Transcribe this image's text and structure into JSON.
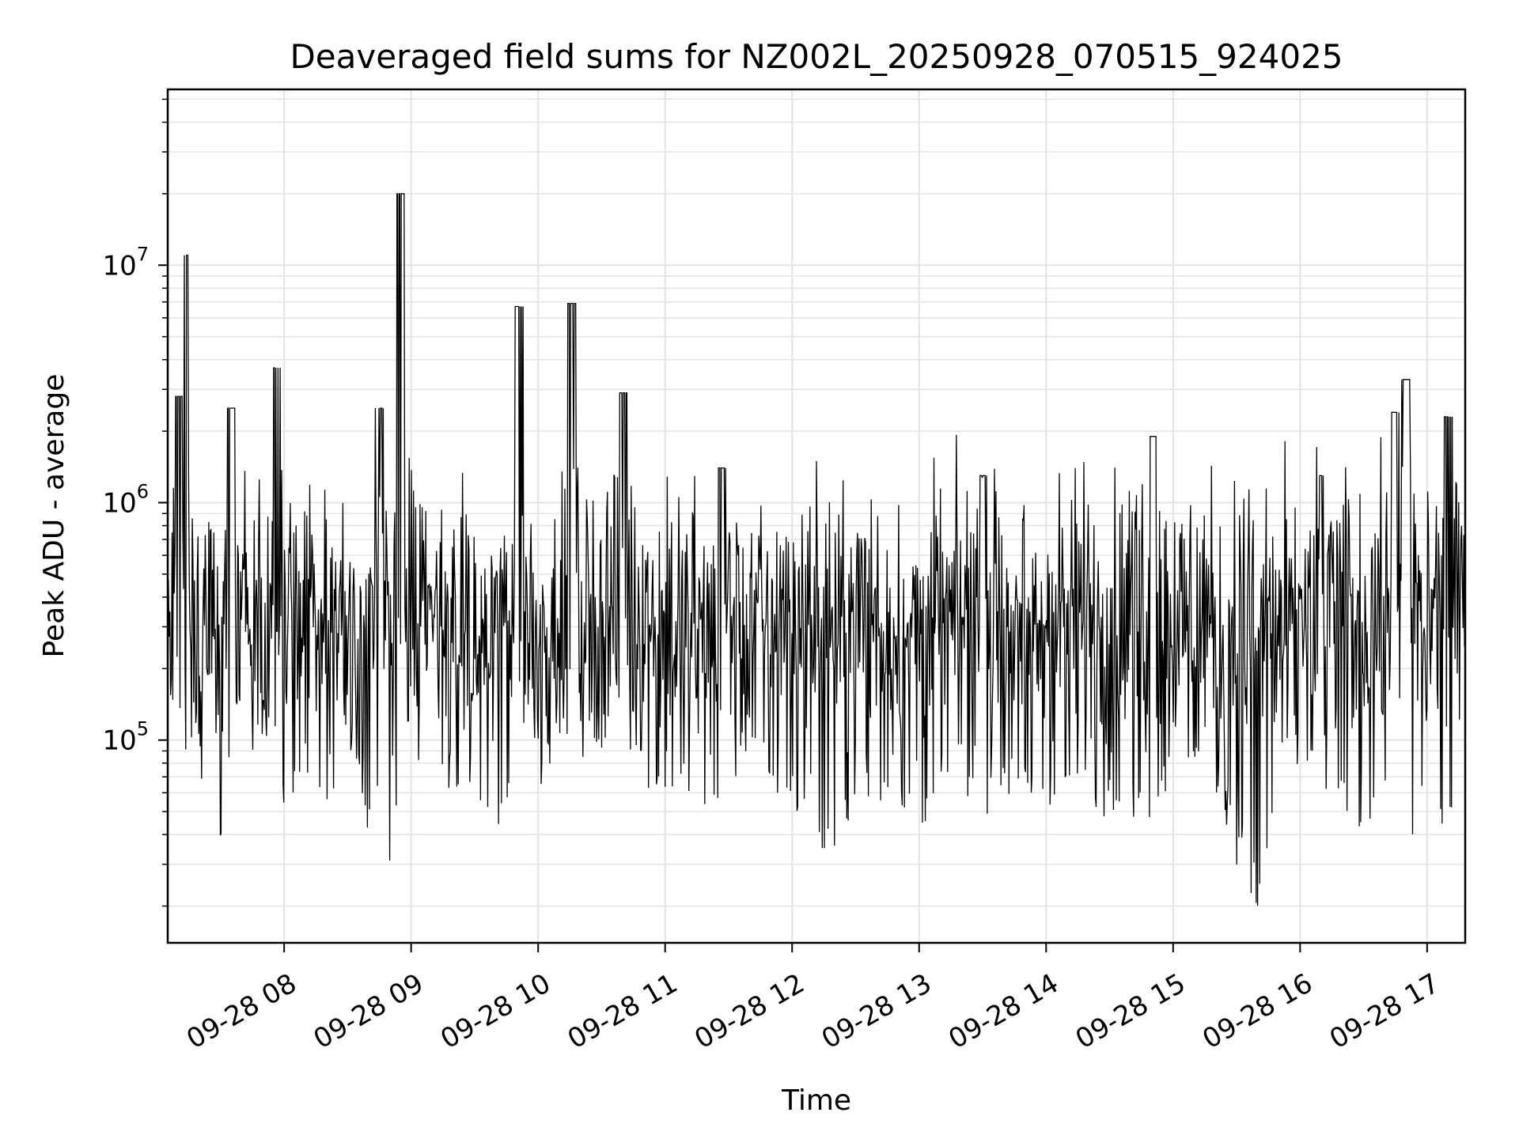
{
  "chart_data": {
    "type": "line",
    "title": "Deaveraged field sums for NZ002L_20250928_070515_924025",
    "xlabel": "Time",
    "ylabel": "Peak ADU - average",
    "xlim": [
      "09-28 07:05",
      "09-28 17:18"
    ],
    "ylim": [
      14000,
      55000000
    ],
    "y_scale": "log",
    "grid": true,
    "line_color": "#000000",
    "x_ticks": [
      "09-28 08",
      "09-28 09",
      "09-28 10",
      "09-28 11",
      "09-28 12",
      "09-28 13",
      "09-28 14",
      "09-28 15",
      "09-28 16",
      "09-28 17"
    ],
    "y_ticks": [
      {
        "value": 100000,
        "base": "10",
        "exp": "5"
      },
      {
        "value": 1000000,
        "base": "10",
        "exp": "6"
      },
      {
        "value": 10000000,
        "base": "10",
        "exp": "7"
      }
    ],
    "series": [
      {
        "x": [
          "09-28 07:05",
          "09-28 07:10",
          "09-28 07:13",
          "09-28 07:17",
          "09-28 07:20",
          "09-28 07:30",
          "09-28 07:35",
          "09-28 07:45",
          "09-28 07:50",
          "09-28 07:57",
          "09-28 08:10",
          "09-28 08:25",
          "09-28 08:35",
          "09-28 08:40",
          "09-28 08:45",
          "09-28 08:50",
          "09-28 08:55",
          "09-28 09:05",
          "09-28 09:20",
          "09-28 09:30",
          "09-28 09:40",
          "09-28 09:51",
          "09-28 10:00",
          "09-28 10:10",
          "09-28 10:16",
          "09-28 10:25",
          "09-28 10:40",
          "09-28 10:50",
          "09-28 11:05",
          "09-28 11:20",
          "09-28 11:27",
          "09-28 11:40",
          "09-28 11:50",
          "09-28 12:05",
          "09-28 12:20",
          "09-28 12:30",
          "09-28 12:45",
          "09-28 13:00",
          "09-28 13:15",
          "09-28 13:30",
          "09-28 13:45",
          "09-28 14:00",
          "09-28 14:15",
          "09-28 14:30",
          "09-28 14:50",
          "09-28 15:05",
          "09-28 15:20",
          "09-28 15:30",
          "09-28 15:40",
          "09-28 15:50",
          "09-28 16:00",
          "09-28 16:10",
          "09-28 16:20",
          "09-28 16:30",
          "09-28 16:45",
          "09-28 16:50",
          "09-28 17:00",
          "09-28 17:10",
          "09-28 17:18"
        ],
        "y": [
          300000,
          2800000,
          11000000,
          250000,
          180000,
          200000,
          2500000,
          150000,
          300000,
          3700000,
          400000,
          300000,
          200000,
          180000,
          2500000,
          80000,
          20000000,
          400000,
          250000,
          150000,
          200000,
          6700000,
          250000,
          200000,
          6900000,
          400000,
          2900000,
          300000,
          150000,
          400000,
          1400000,
          500000,
          250000,
          300000,
          200000,
          800000,
          250000,
          350000,
          300000,
          1300000,
          400000,
          300000,
          500000,
          400000,
          1900000,
          300000,
          200000,
          30000,
          20000,
          200000,
          400000,
          1300000,
          500000,
          400000,
          2400000,
          3300000,
          200000,
          2300000,
          600000
        ],
        "y_low": [
          250000,
          50000,
          70000,
          100000,
          80000,
          30000,
          90000,
          100000,
          150000,
          50000,
          60000,
          50000,
          80000,
          40000,
          50000,
          25000,
          100000,
          150000,
          60000,
          70000,
          40000,
          60000,
          50000,
          120000,
          70000,
          100000,
          80000,
          50000,
          70000,
          50000,
          40000,
          100000,
          60000,
          50000,
          30000,
          50000,
          60000,
          40000,
          80000,
          50000,
          60000,
          50000,
          60000,
          50000,
          50000,
          80000,
          60000,
          40000,
          20000,
          70000,
          80000,
          60000,
          50000,
          40000,
          70000,
          30000,
          60000,
          40000,
          35000
        ]
      }
    ]
  }
}
